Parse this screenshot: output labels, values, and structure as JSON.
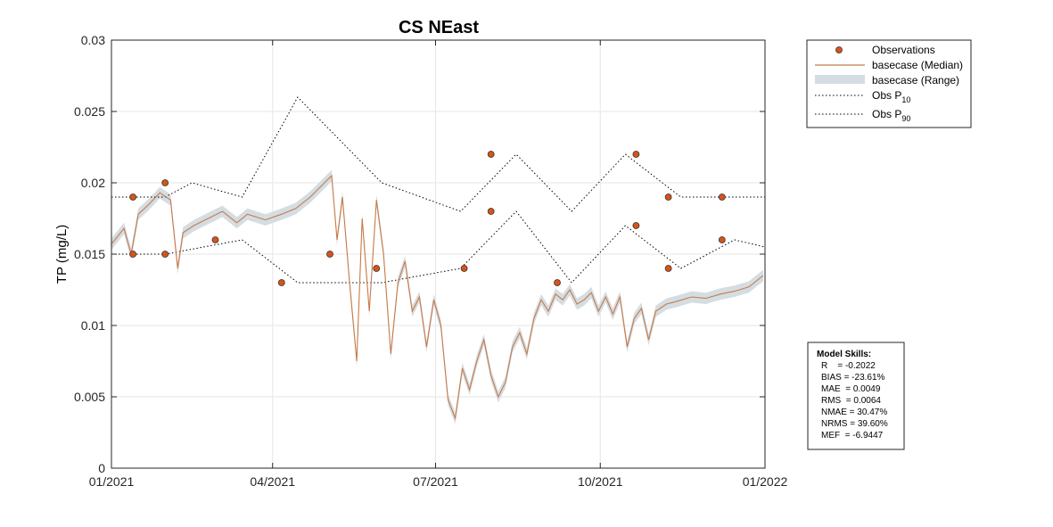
{
  "chart_data": {
    "type": "line",
    "title": "CS NEast",
    "ylabel": "TP (mg/L)",
    "xlabel": "",
    "xlim": [
      "2021-01-01",
      "2022-01-01"
    ],
    "ylim": [
      0,
      0.03
    ],
    "x_ticks": [
      "01/2021",
      "04/2021",
      "07/2021",
      "10/2021",
      "01/2022"
    ],
    "y_ticks": [
      "0",
      "0.005",
      "0.01",
      "0.015",
      "0.02",
      "0.025",
      "0.03"
    ],
    "grid": true,
    "legend_position": "outside top-right",
    "colors": {
      "observations": "#d95319",
      "median": "#c87a4a",
      "range": "#d4dde2",
      "obs_percentile": "#000000"
    },
    "series": [
      {
        "name": "Observations",
        "style": "markers",
        "points": [
          [
            "2021-01-13",
            0.019
          ],
          [
            "2021-01-13",
            0.015
          ],
          [
            "2021-01-31",
            0.02
          ],
          [
            "2021-01-31",
            0.015
          ],
          [
            "2021-02-28",
            0.016
          ],
          [
            "2021-04-06",
            0.013
          ],
          [
            "2021-05-03",
            0.015
          ],
          [
            "2021-05-29",
            0.014
          ],
          [
            "2021-07-17",
            0.014
          ],
          [
            "2021-08-01",
            0.022
          ],
          [
            "2021-08-01",
            0.018
          ],
          [
            "2021-09-07",
            0.013
          ],
          [
            "2021-10-21",
            0.022
          ],
          [
            "2021-10-21",
            0.017
          ],
          [
            "2021-11-08",
            0.019
          ],
          [
            "2021-11-08",
            0.014
          ],
          [
            "2021-12-08",
            0.019
          ],
          [
            "2021-12-08",
            0.016
          ]
        ]
      },
      {
        "name": "basecase (Median)",
        "style": "line",
        "points": [
          [
            "2021-01-01",
            0.0157
          ],
          [
            "2021-01-08",
            0.0168
          ],
          [
            "2021-01-12",
            0.015
          ],
          [
            "2021-01-16",
            0.0178
          ],
          [
            "2021-01-22",
            0.0185
          ],
          [
            "2021-01-28",
            0.0193
          ],
          [
            "2021-02-03",
            0.0188
          ],
          [
            "2021-02-07",
            0.014
          ],
          [
            "2021-02-10",
            0.0165
          ],
          [
            "2021-02-16",
            0.017
          ],
          [
            "2021-02-24",
            0.0175
          ],
          [
            "2021-03-04",
            0.018
          ],
          [
            "2021-03-12",
            0.0172
          ],
          [
            "2021-03-18",
            0.0178
          ],
          [
            "2021-03-28",
            0.0174
          ],
          [
            "2021-04-06",
            0.0178
          ],
          [
            "2021-04-14",
            0.0182
          ],
          [
            "2021-04-22",
            0.019
          ],
          [
            "2021-04-30",
            0.02
          ],
          [
            "2021-05-04",
            0.0205
          ],
          [
            "2021-05-07",
            0.016
          ],
          [
            "2021-05-10",
            0.019
          ],
          [
            "2021-05-14",
            0.013
          ],
          [
            "2021-05-18",
            0.0075
          ],
          [
            "2021-05-21",
            0.0175
          ],
          [
            "2021-05-25",
            0.011
          ],
          [
            "2021-05-29",
            0.0188
          ],
          [
            "2021-06-02",
            0.015
          ],
          [
            "2021-06-06",
            0.008
          ],
          [
            "2021-06-10",
            0.013
          ],
          [
            "2021-06-14",
            0.0145
          ],
          [
            "2021-06-18",
            0.011
          ],
          [
            "2021-06-22",
            0.012
          ],
          [
            "2021-06-26",
            0.0085
          ],
          [
            "2021-06-30",
            0.0118
          ],
          [
            "2021-07-04",
            0.01
          ],
          [
            "2021-07-08",
            0.0048
          ],
          [
            "2021-07-12",
            0.0035
          ],
          [
            "2021-07-16",
            0.007
          ],
          [
            "2021-07-20",
            0.0055
          ],
          [
            "2021-07-24",
            0.0075
          ],
          [
            "2021-07-28",
            0.009
          ],
          [
            "2021-08-01",
            0.0065
          ],
          [
            "2021-08-05",
            0.005
          ],
          [
            "2021-08-09",
            0.006
          ],
          [
            "2021-08-13",
            0.0085
          ],
          [
            "2021-08-17",
            0.0095
          ],
          [
            "2021-08-21",
            0.008
          ],
          [
            "2021-08-25",
            0.0105
          ],
          [
            "2021-08-29",
            0.0118
          ],
          [
            "2021-09-02",
            0.011
          ],
          [
            "2021-09-06",
            0.0122
          ],
          [
            "2021-09-10",
            0.0118
          ],
          [
            "2021-09-14",
            0.0125
          ],
          [
            "2021-09-18",
            0.0115
          ],
          [
            "2021-09-22",
            0.0118
          ],
          [
            "2021-09-26",
            0.0123
          ],
          [
            "2021-09-30",
            0.011
          ],
          [
            "2021-10-04",
            0.012
          ],
          [
            "2021-10-08",
            0.0108
          ],
          [
            "2021-10-12",
            0.012
          ],
          [
            "2021-10-16",
            0.0085
          ],
          [
            "2021-10-20",
            0.0105
          ],
          [
            "2021-10-24",
            0.0112
          ],
          [
            "2021-10-28",
            0.009
          ],
          [
            "2021-11-01",
            0.011
          ],
          [
            "2021-11-07",
            0.0115
          ],
          [
            "2021-11-13",
            0.0117
          ],
          [
            "2021-11-21",
            0.012
          ],
          [
            "2021-11-29",
            0.0119
          ],
          [
            "2021-12-07",
            0.0122
          ],
          [
            "2021-12-15",
            0.0124
          ],
          [
            "2021-12-23",
            0.0127
          ],
          [
            "2021-12-31",
            0.0135
          ]
        ]
      },
      {
        "name": "basecase (Range)",
        "style": "band",
        "note_width": "narrow band around median"
      },
      {
        "name": "Obs P10",
        "name_parts": [
          "Obs P",
          "10"
        ],
        "style": "dotted",
        "points": [
          [
            "2021-01-01",
            0.015
          ],
          [
            "2021-01-31",
            0.015
          ],
          [
            "2021-03-15",
            0.016
          ],
          [
            "2021-04-15",
            0.013
          ],
          [
            "2021-06-01",
            0.013
          ],
          [
            "2021-07-15",
            0.014
          ],
          [
            "2021-08-15",
            0.018
          ],
          [
            "2021-09-15",
            0.013
          ],
          [
            "2021-10-15",
            0.017
          ],
          [
            "2021-11-15",
            0.014
          ],
          [
            "2021-12-15",
            0.016
          ],
          [
            "2022-01-01",
            0.0155
          ]
        ]
      },
      {
        "name": "Obs P90",
        "name_parts": [
          "Obs P",
          "90"
        ],
        "style": "dotted",
        "points": [
          [
            "2021-01-01",
            0.019
          ],
          [
            "2021-01-31",
            0.019
          ],
          [
            "2021-02-15",
            0.02
          ],
          [
            "2021-03-15",
            0.019
          ],
          [
            "2021-04-15",
            0.026
          ],
          [
            "2021-06-01",
            0.02
          ],
          [
            "2021-07-15",
            0.018
          ],
          [
            "2021-08-15",
            0.022
          ],
          [
            "2021-09-15",
            0.018
          ],
          [
            "2021-10-15",
            0.022
          ],
          [
            "2021-11-15",
            0.019
          ],
          [
            "2022-01-01",
            0.019
          ]
        ]
      }
    ]
  },
  "legend": {
    "items": [
      {
        "label": "Observations"
      },
      {
        "label": "basecase (Median)"
      },
      {
        "label": "basecase (Range)"
      },
      {
        "label": "Obs P",
        "sub": "10"
      },
      {
        "label": "Obs P",
        "sub": "90"
      }
    ]
  },
  "model_skills": {
    "title": "Model Skills:",
    "lines": [
      "R    = -0.2022",
      "BIAS = -23.61%",
      "MAE  = 0.0049",
      "RMS  = 0.0064",
      "NMAE = 30.47%",
      "NRMS = 39.60%",
      "MEF  = -6.9447"
    ]
  }
}
